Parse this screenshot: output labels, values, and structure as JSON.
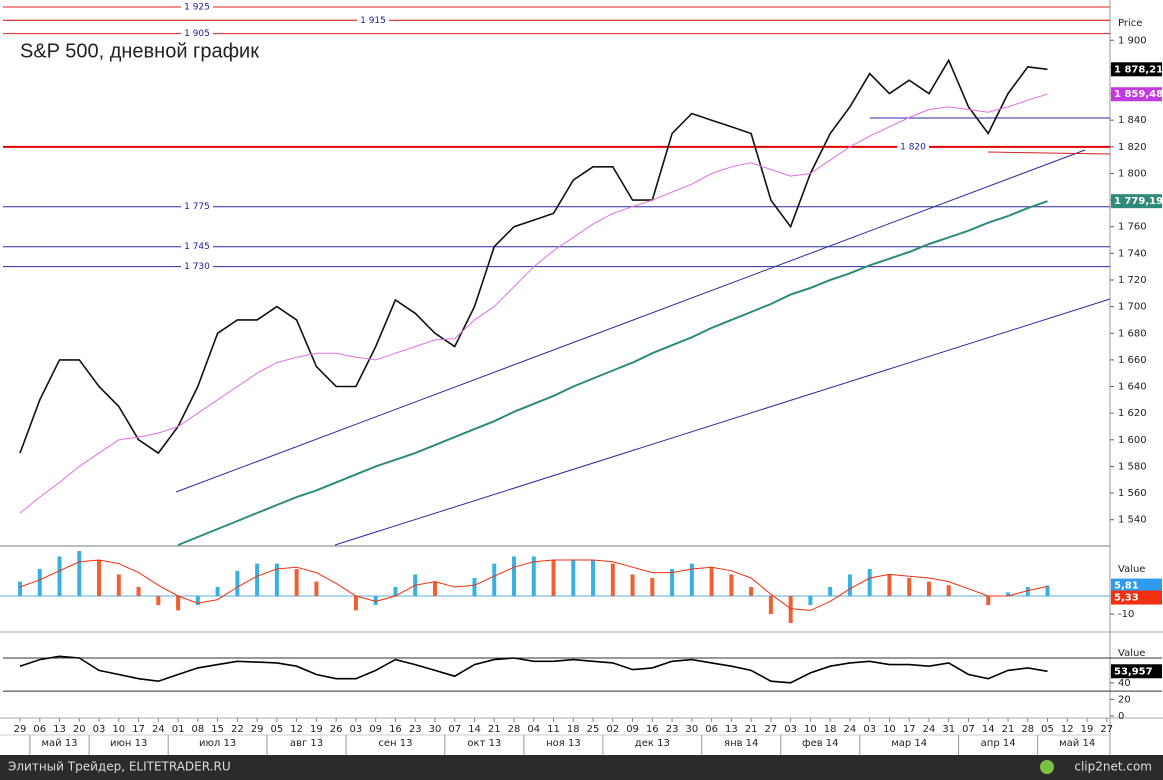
{
  "chart_data": [
    {
      "type": "line",
      "title": "S&P 500, дневной график",
      "y_label": "Price",
      "categories": [
        "29",
        "06",
        "13",
        "20",
        "03",
        "10",
        "17",
        "24",
        "01",
        "08",
        "15",
        "22",
        "29",
        "05",
        "12",
        "19",
        "26",
        "03",
        "09",
        "16",
        "23",
        "30",
        "07",
        "14",
        "21",
        "28",
        "04",
        "11",
        "18",
        "25",
        "02",
        "09",
        "16",
        "23",
        "30",
        "06",
        "13",
        "21",
        "27",
        "03",
        "10",
        "18",
        "24",
        "03",
        "10",
        "17",
        "24",
        "31",
        "07",
        "14",
        "21",
        "28",
        "05",
        "12",
        "19",
        "27"
      ],
      "months": [
        "май 13",
        "июн 13",
        "июл 13",
        "авг 13",
        "сен 13",
        "окт 13",
        "ноя 13",
        "дек 13",
        "янв 14",
        "фев 14",
        "мар 14",
        "апр 14",
        "май 14"
      ],
      "ylim": [
        1521,
        1928
      ],
      "yticks": [
        {
          "value": 1540,
          "label": "1 540"
        },
        {
          "value": 1560,
          "label": "1 560"
        },
        {
          "value": 1580,
          "label": "1 580"
        },
        {
          "value": 1600,
          "label": "1 600"
        },
        {
          "value": 1620,
          "label": "1 620"
        },
        {
          "value": 1640,
          "label": "1 640"
        },
        {
          "value": 1660,
          "label": "1 660"
        },
        {
          "value": 1680,
          "label": "1 680"
        },
        {
          "value": 1700,
          "label": "1 700"
        },
        {
          "value": 1720,
          "label": "1 720"
        },
        {
          "value": 1740,
          "label": "1 740"
        },
        {
          "value": 1760,
          "label": "1 760"
        },
        {
          "value": 1780,
          "label": "1 780"
        },
        {
          "value": 1800,
          "label": "1 800"
        },
        {
          "value": 1820,
          "label": "1 820"
        },
        {
          "value": 1840,
          "label": "1 840"
        },
        {
          "value": 1860,
          "label": "1 860"
        },
        {
          "value": 1880,
          "label": "1 880"
        },
        {
          "value": 1900,
          "label": "1 900"
        }
      ],
      "levels": [
        {
          "value": 1925,
          "label": "1 925",
          "color": "#e02020"
        },
        {
          "value": 1915,
          "label": "1 915",
          "color": "#e00000"
        },
        {
          "value": 1905,
          "label": "1 905",
          "color": "#e02020"
        },
        {
          "value": 1820,
          "label": "1 820",
          "color": "#e00000"
        },
        {
          "value": 1775,
          "label": "1 775",
          "color": "#2a2aa0"
        },
        {
          "value": 1745,
          "label": "1 745",
          "color": "#2a2aa0"
        },
        {
          "value": 1730,
          "label": "1 730",
          "color": "#2a2aa0"
        }
      ],
      "series": [
        {
          "color": "#111111",
          "tag_color": "#000000",
          "values": [
            1590,
            1630,
            1660,
            1660,
            1640,
            1625,
            1600,
            1590,
            1610,
            1640,
            1680,
            1690,
            1690,
            1700,
            1690,
            1655,
            1640,
            1640,
            1670,
            1705,
            1695,
            1680,
            1670,
            1700,
            1745,
            1760,
            1765,
            1770,
            1795,
            1805,
            1805,
            1780,
            1780,
            1830,
            1845,
            1840,
            1835,
            1830,
            1780,
            1760,
            1800,
            1830,
            1850,
            1875,
            1860,
            1870,
            1860,
            1885,
            1850,
            1830,
            1860,
            1880,
            1878.21,
            null,
            null,
            null
          ],
          "value_labels": [
            null,
            null,
            null,
            null,
            null,
            null,
            null,
            null,
            null,
            null,
            null,
            null,
            null,
            null,
            null,
            null,
            null,
            null,
            null,
            null,
            null,
            null,
            null,
            null,
            null,
            null,
            null,
            null,
            null,
            null,
            null,
            null,
            null,
            null,
            null,
            null,
            null,
            null,
            null,
            null,
            null,
            null,
            null,
            null,
            null,
            null,
            null,
            null,
            null,
            null,
            null,
            null,
            "1 878,21",
            null,
            null,
            null
          ]
        },
        {
          "color": "#e070e0",
          "tag_color": "#c23adf",
          "values": [
            1545,
            1557,
            1568,
            1580,
            1590,
            1600,
            1602,
            1605,
            1610,
            1620,
            1630,
            1640,
            1650,
            1658,
            1662,
            1665,
            1665,
            1662,
            1660,
            1665,
            1670,
            1675,
            1676,
            1690,
            1700,
            1715,
            1730,
            1742,
            1752,
            1762,
            1770,
            1775,
            1780,
            1786,
            1792,
            1800,
            1805,
            1808,
            1803,
            1798,
            1800,
            1810,
            1820,
            1828,
            1835,
            1842,
            1848,
            1850,
            1848,
            1846,
            1850,
            1855,
            1859.48,
            null,
            null,
            null
          ],
          "value_labels": [
            null,
            null,
            null,
            null,
            null,
            null,
            null,
            null,
            null,
            null,
            null,
            null,
            null,
            null,
            null,
            null,
            null,
            null,
            null,
            null,
            null,
            null,
            null,
            null,
            null,
            null,
            null,
            null,
            null,
            null,
            null,
            null,
            null,
            null,
            null,
            null,
            null,
            null,
            null,
            null,
            null,
            null,
            null,
            null,
            null,
            null,
            null,
            null,
            null,
            null,
            null,
            null,
            "1 859,48",
            null,
            null,
            null
          ]
        },
        {
          "color": "#2e8b7a",
          "tag_color": "#2e8b7a",
          "values": [
            null,
            null,
            null,
            null,
            null,
            null,
            null,
            null,
            1521,
            1527,
            1533,
            1539,
            1545,
            1551,
            1557,
            1562,
            1568,
            1574,
            1580,
            1585,
            1590,
            1596,
            1602,
            1608,
            1614,
            1621,
            1627,
            1633,
            1640,
            1646,
            1652,
            1658,
            1665,
            1671,
            1677,
            1684,
            1690,
            1696,
            1702,
            1709,
            1714,
            1720,
            1725,
            1731,
            1736,
            1741,
            1747,
            1752,
            1757,
            1763,
            1768,
            1774,
            1779.19,
            null,
            null,
            null
          ],
          "value_labels": [
            null,
            null,
            null,
            null,
            null,
            null,
            null,
            null,
            null,
            null,
            null,
            null,
            null,
            null,
            null,
            null,
            null,
            null,
            null,
            null,
            null,
            null,
            null,
            null,
            null,
            null,
            null,
            null,
            null,
            null,
            null,
            null,
            null,
            null,
            null,
            null,
            null,
            null,
            null,
            null,
            null,
            null,
            null,
            null,
            null,
            null,
            null,
            null,
            null,
            null,
            null,
            null,
            "1 779,19",
            null,
            null,
            null
          ]
        }
      ]
    },
    {
      "type": "bar",
      "y_label": "Value",
      "ylim": [
        -18.9,
        26.7
      ],
      "yticks": [
        -10
      ],
      "series": [
        {
          "up_color": "#3ab0e0",
          "down_color": "#f06030",
          "tag_color": "#2f9cf0",
          "values": [
            8,
            15,
            22,
            25,
            20,
            12,
            5,
            -5,
            -8,
            -5,
            5,
            14,
            18,
            18,
            15,
            8,
            0,
            -8,
            -5,
            5,
            12,
            8,
            0,
            10,
            18,
            22,
            22,
            20,
            20,
            20,
            18,
            12,
            10,
            15,
            18,
            16,
            12,
            5,
            -10,
            -15,
            -5,
            5,
            12,
            15,
            12,
            10,
            8,
            6,
            0,
            -5,
            2,
            5,
            5.81,
            null,
            null,
            null
          ],
          "value_labels": [
            null,
            null,
            null,
            null,
            null,
            null,
            null,
            null,
            null,
            null,
            null,
            null,
            null,
            null,
            null,
            null,
            null,
            null,
            null,
            null,
            null,
            null,
            null,
            null,
            null,
            null,
            null,
            null,
            null,
            null,
            null,
            null,
            null,
            null,
            null,
            null,
            null,
            null,
            null,
            null,
            null,
            null,
            null,
            null,
            null,
            null,
            null,
            null,
            null,
            null,
            null,
            null,
            "5,81",
            null,
            null,
            null
          ]
        },
        {
          "mark": "line",
          "color": "#f03010",
          "tag_color": "#f03010",
          "values": [
            5,
            9,
            14,
            19,
            20,
            18,
            13,
            6,
            0,
            -4,
            -2,
            5,
            11,
            15,
            16,
            13,
            7,
            0,
            -3,
            0,
            6,
            8,
            5,
            6,
            11,
            16,
            19,
            20,
            20,
            20,
            19,
            16,
            13,
            13,
            15,
            16,
            14,
            10,
            1,
            -7,
            -8,
            -3,
            4,
            10,
            12,
            11,
            10,
            8,
            4,
            0,
            0,
            3,
            5.33,
            null,
            null,
            null
          ],
          "value_labels": [
            null,
            null,
            null,
            null,
            null,
            null,
            null,
            null,
            null,
            null,
            null,
            null,
            null,
            null,
            null,
            null,
            null,
            null,
            null,
            null,
            null,
            null,
            null,
            null,
            null,
            null,
            null,
            null,
            null,
            null,
            null,
            null,
            null,
            null,
            null,
            null,
            null,
            null,
            null,
            null,
            null,
            null,
            null,
            null,
            null,
            null,
            null,
            null,
            null,
            null,
            null,
            null,
            "5,33",
            null,
            null,
            null
          ]
        }
      ]
    },
    {
      "type": "line",
      "y_label": "Value",
      "ylim": [
        0,
        82
      ],
      "yticks": [
        0,
        20,
        40
      ],
      "levels": [
        70,
        30
      ],
      "series": [
        {
          "color": "#000000",
          "tag_color": "#000000",
          "values": [
            60,
            68,
            72,
            70,
            55,
            50,
            45,
            42,
            50,
            58,
            62,
            66,
            65,
            64,
            60,
            50,
            45,
            45,
            55,
            68,
            62,
            55,
            48,
            62,
            68,
            70,
            66,
            66,
            68,
            66,
            64,
            56,
            58,
            66,
            68,
            64,
            60,
            55,
            42,
            40,
            52,
            60,
            64,
            66,
            62,
            62,
            60,
            64,
            50,
            45,
            55,
            58,
            53.957,
            null,
            null,
            null
          ],
          "value_labels": [
            null,
            null,
            null,
            null,
            null,
            null,
            null,
            null,
            null,
            null,
            null,
            null,
            null,
            null,
            null,
            null,
            null,
            null,
            null,
            null,
            null,
            null,
            null,
            null,
            null,
            null,
            null,
            null,
            null,
            null,
            null,
            null,
            null,
            null,
            null,
            null,
            null,
            null,
            null,
            null,
            null,
            null,
            null,
            null,
            null,
            null,
            null,
            null,
            null,
            null,
            null,
            null,
            "53,957",
            null,
            null,
            null
          ]
        }
      ]
    }
  ],
  "footer": {
    "source": "Элитный Трейдер, ELITETRADER.RU",
    "watermark": "clip2net.com"
  }
}
